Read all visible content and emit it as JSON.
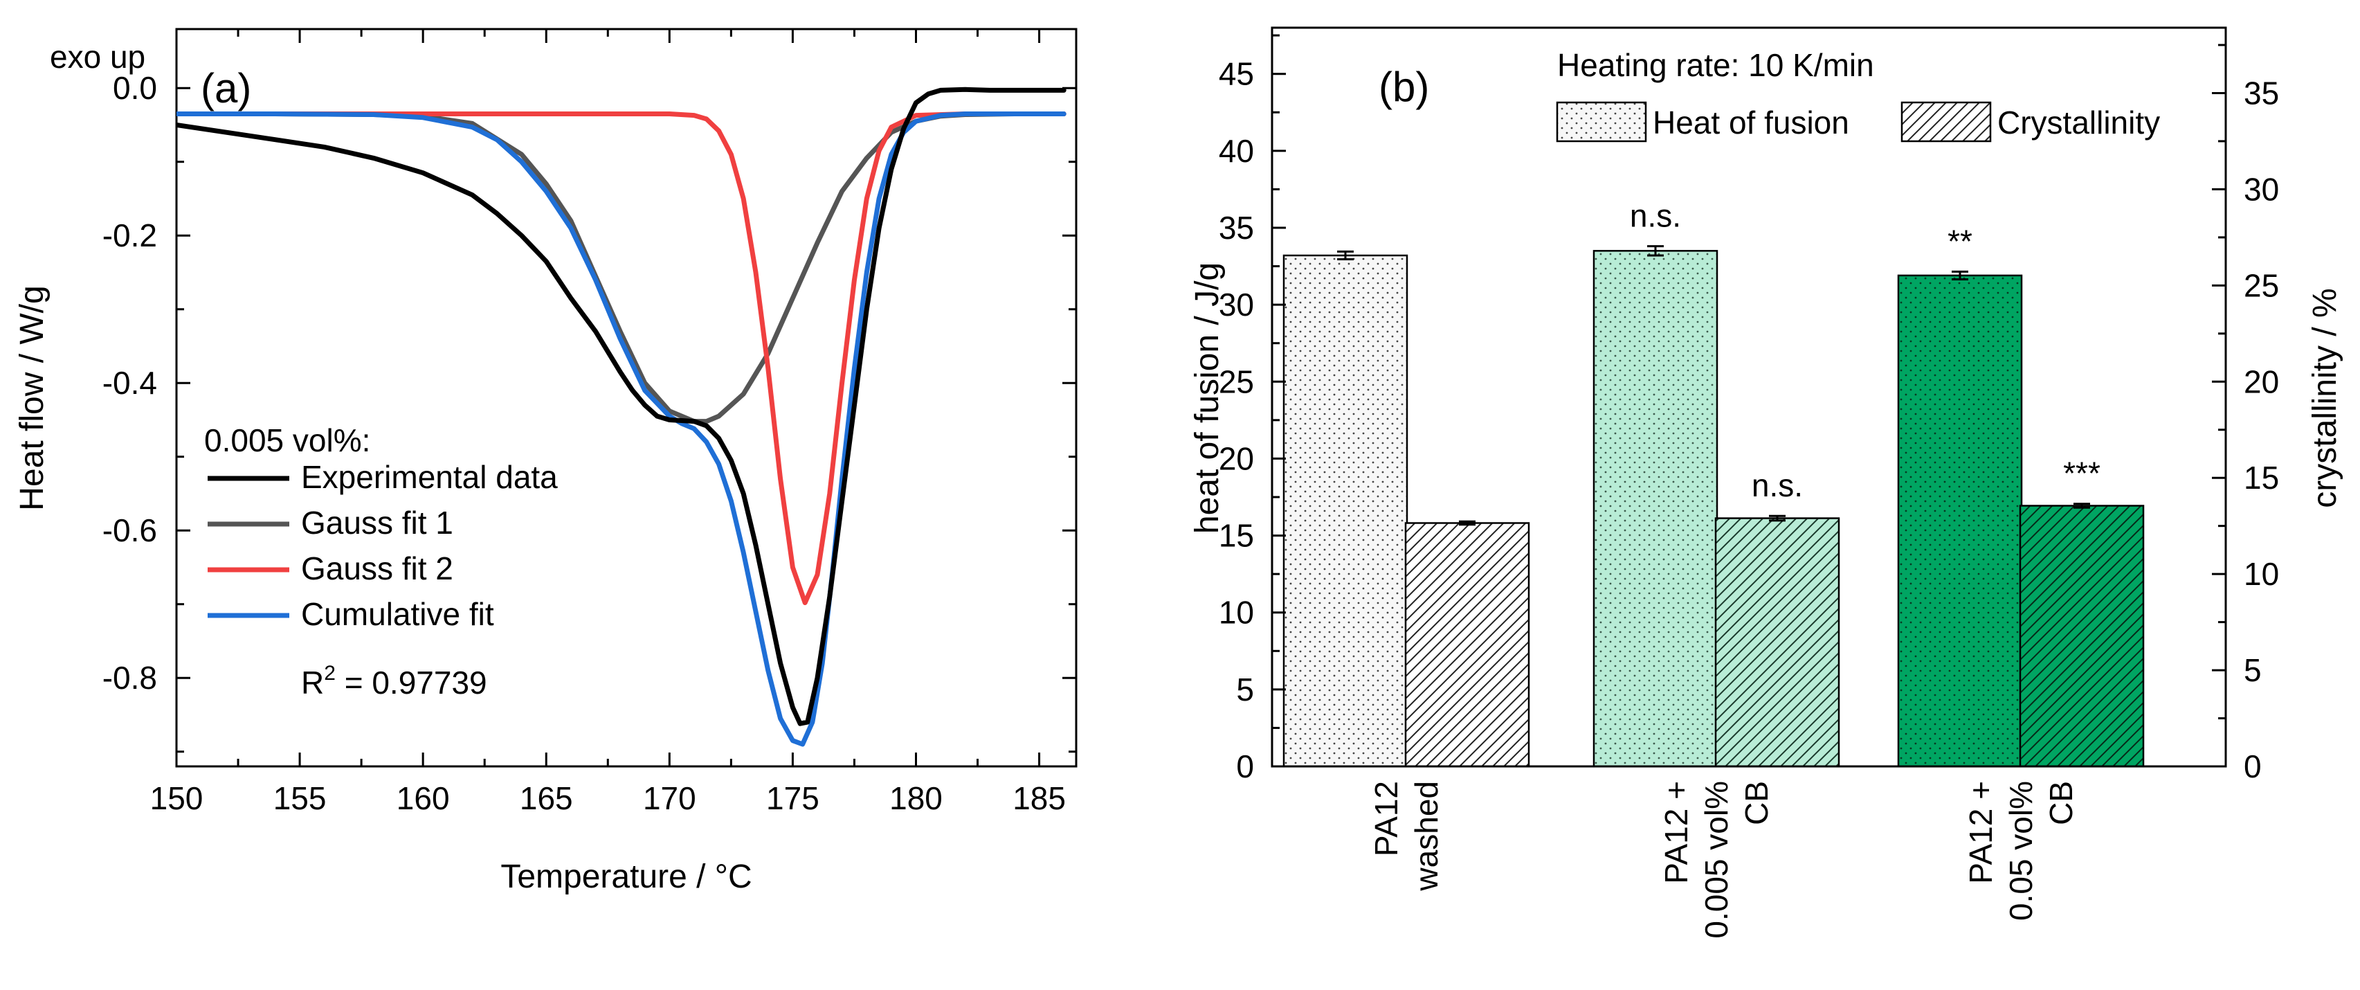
{
  "colors": {
    "experimental": "#000000",
    "gauss1": "#555555",
    "gauss2": "#f04040",
    "cumulative": "#1f6fd6",
    "bar_washed": "#f7f7f7",
    "bar_005": "#b8ecd6",
    "bar_05": "#00a562"
  },
  "chart_data": [
    {
      "panel": "a",
      "type": "line",
      "panel_label": "(a)",
      "exo_label": "exo up",
      "xlabel": "Temperature / °C",
      "ylabel": "Heat flow / W/g",
      "xlim": [
        150,
        186.5
      ],
      "ylim": [
        -0.92,
        0.08
      ],
      "xticks": [
        150,
        155,
        160,
        165,
        170,
        175,
        180,
        185
      ],
      "xtick_labels": [
        "150",
        "155",
        "160",
        "165",
        "170",
        "175",
        "180",
        "185"
      ],
      "yticks": [
        0.0,
        -0.2,
        -0.4,
        -0.6,
        -0.8
      ],
      "ytick_labels": [
        "0.0",
        "-0.2",
        "-0.4",
        "-0.6",
        "-0.8"
      ],
      "legend_title": "0.005 vol%:",
      "r2_label": "R",
      "r2_sup": "2",
      "r2_value": " = 0.97739",
      "series": [
        {
          "name": "Experimental data",
          "color_key": "experimental",
          "x": [
            150,
            152,
            154,
            156,
            158,
            160,
            162,
            163,
            164,
            165,
            166,
            167,
            168,
            168.5,
            169,
            169.5,
            170,
            170.5,
            171,
            171.5,
            172,
            172.5,
            173,
            173.5,
            174,
            174.5,
            175,
            175.3,
            175.6,
            176,
            176.5,
            177,
            177.5,
            178,
            178.5,
            179,
            179.5,
            180,
            180.5,
            181,
            182,
            183,
            184,
            185,
            186
          ],
          "y": [
            -0.05,
            -0.06,
            -0.07,
            -0.08,
            -0.095,
            -0.115,
            -0.145,
            -0.17,
            -0.2,
            -0.235,
            -0.285,
            -0.33,
            -0.385,
            -0.41,
            -0.43,
            -0.445,
            -0.45,
            -0.451,
            -0.452,
            -0.458,
            -0.475,
            -0.505,
            -0.55,
            -0.62,
            -0.7,
            -0.78,
            -0.84,
            -0.862,
            -0.86,
            -0.8,
            -0.69,
            -0.56,
            -0.43,
            -0.3,
            -0.19,
            -0.11,
            -0.055,
            -0.02,
            -0.008,
            -0.003,
            -0.002,
            -0.003,
            -0.003,
            -0.003,
            -0.003
          ]
        },
        {
          "name": "Gauss fit 1",
          "color_key": "gauss1",
          "x": [
            150,
            154,
            158,
            160,
            162,
            164,
            165,
            166,
            167,
            168,
            169,
            170,
            171,
            171.5,
            172,
            173,
            174,
            175,
            176,
            177,
            178,
            179,
            180,
            181,
            182,
            184,
            186
          ],
          "y": [
            -0.035,
            -0.035,
            -0.036,
            -0.038,
            -0.048,
            -0.09,
            -0.13,
            -0.18,
            -0.255,
            -0.33,
            -0.4,
            -0.438,
            -0.452,
            -0.452,
            -0.445,
            -0.415,
            -0.36,
            -0.285,
            -0.21,
            -0.14,
            -0.095,
            -0.06,
            -0.045,
            -0.038,
            -0.036,
            -0.035,
            -0.035
          ]
        },
        {
          "name": "Gauss fit 2",
          "color_key": "gauss2",
          "x": [
            150,
            160,
            170,
            171,
            171.5,
            172,
            172.5,
            173,
            173.5,
            174,
            174.5,
            175,
            175.5,
            176,
            176.5,
            177,
            177.5,
            178,
            178.5,
            179,
            180,
            182,
            186
          ],
          "y": [
            -0.035,
            -0.035,
            -0.035,
            -0.037,
            -0.042,
            -0.058,
            -0.09,
            -0.15,
            -0.25,
            -0.38,
            -0.53,
            -0.65,
            -0.698,
            -0.66,
            -0.55,
            -0.4,
            -0.26,
            -0.15,
            -0.085,
            -0.053,
            -0.037,
            -0.035,
            -0.035
          ]
        },
        {
          "name": "Cumulative fit",
          "color_key": "cumulative",
          "x": [
            150,
            154,
            158,
            160,
            162,
            163,
            164,
            165,
            166,
            167,
            168,
            169,
            170,
            170.5,
            171,
            171.5,
            172,
            172.5,
            173,
            173.5,
            174,
            174.5,
            175,
            175.4,
            175.8,
            176.2,
            176.6,
            177,
            177.5,
            178,
            178.5,
            179,
            179.5,
            180,
            181,
            182,
            184,
            186
          ],
          "y": [
            -0.035,
            -0.035,
            -0.036,
            -0.04,
            -0.053,
            -0.07,
            -0.1,
            -0.14,
            -0.19,
            -0.26,
            -0.34,
            -0.41,
            -0.445,
            -0.455,
            -0.462,
            -0.48,
            -0.51,
            -0.56,
            -0.63,
            -0.71,
            -0.79,
            -0.855,
            -0.885,
            -0.89,
            -0.86,
            -0.78,
            -0.66,
            -0.53,
            -0.38,
            -0.25,
            -0.15,
            -0.09,
            -0.06,
            -0.045,
            -0.037,
            -0.035,
            -0.035,
            -0.035
          ]
        }
      ]
    },
    {
      "panel": "b",
      "type": "bar",
      "panel_label": "(b)",
      "ylabel_left": "heat of fusion / J/g",
      "ylabel_right": "crystallinity / %",
      "ylim_left": [
        0,
        48
      ],
      "ylim_right": [
        0,
        38.4
      ],
      "yticks_left": [
        0,
        5,
        10,
        15,
        20,
        25,
        30,
        35,
        40,
        45
      ],
      "ytick_labels_left": [
        "0",
        "5",
        "10",
        "15",
        "20",
        "25",
        "30",
        "35",
        "40",
        "45"
      ],
      "yticks_right": [
        0,
        5,
        10,
        15,
        20,
        25,
        30,
        35
      ],
      "ytick_labels_right": [
        "0",
        "5",
        "10",
        "15",
        "20",
        "25",
        "30",
        "35"
      ],
      "legend_title": "Heating rate: 10 K/min",
      "legend_items": [
        "Heat of fusion",
        "Crystallinity"
      ],
      "categories": [
        {
          "line1": "PA12",
          "line2": "washed",
          "color_key": "bar_washed"
        },
        {
          "line1": "PA12 +",
          "line2": "0.005 vol%",
          "line3": "CB",
          "color_key": "bar_005"
        },
        {
          "line1": "PA12 +",
          "line2": "0.05 vol%",
          "line3": "CB",
          "color_key": "bar_05"
        }
      ],
      "series": [
        {
          "name": "Heat of fusion",
          "axis": "left",
          "values": [
            33.2,
            33.5,
            31.9
          ],
          "errors": [
            0.25,
            0.3,
            0.25
          ],
          "annotations": [
            "",
            "n.s.",
            "**"
          ]
        },
        {
          "name": "Crystallinity",
          "axis": "right",
          "values": [
            12.65,
            12.9,
            13.55
          ],
          "errors": [
            0.08,
            0.12,
            0.1
          ],
          "annotations": [
            "",
            "n.s.",
            "***"
          ]
        }
      ]
    }
  ]
}
